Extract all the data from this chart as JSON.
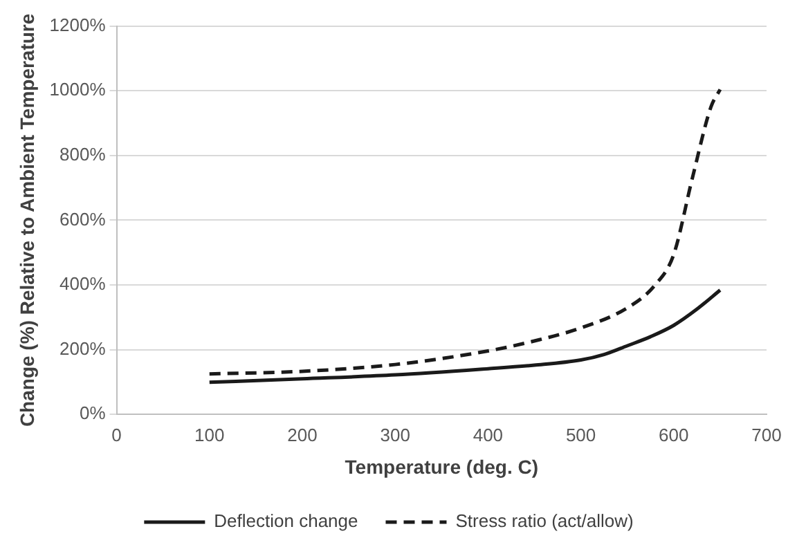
{
  "chart_data": {
    "type": "line",
    "xlabel": "Temperature (deg. C)",
    "ylabel": "Change (%) Relative to Ambient Temperature",
    "xlim": [
      0,
      700
    ],
    "xticks": [
      0,
      100,
      200,
      300,
      400,
      500,
      600,
      700
    ],
    "ylim": [
      0,
      1200
    ],
    "yticks": [
      {
        "value": 0,
        "label": "0%"
      },
      {
        "value": 200,
        "label": "200%"
      },
      {
        "value": 400,
        "label": "400%"
      },
      {
        "value": 600,
        "label": "600%"
      },
      {
        "value": 800,
        "label": "800%"
      },
      {
        "value": 1000,
        "label": "1000%"
      },
      {
        "value": 1200,
        "label": "1200%"
      }
    ],
    "grid": "y",
    "legend": "bottom",
    "marker": "none",
    "series": [
      {
        "name": "Deflection change",
        "color": "#1a1a1a",
        "line_style": "solid",
        "x": [
          100,
          200,
          300,
          400,
          450,
          500,
          525,
          550,
          575,
          600,
          625,
          650
        ],
        "values": [
          99,
          110,
          122,
          141,
          152,
          168,
          185,
          212,
          240,
          275,
          325,
          384
        ]
      },
      {
        "name": "Stress ratio (act/allow)",
        "color": "#1a1a1a",
        "line_style": "dashed",
        "x": [
          100,
          200,
          300,
          400,
          450,
          500,
          550,
          580,
          600,
          620,
          640,
          650
        ],
        "values": [
          125,
          133,
          154,
          196,
          227,
          267,
          329,
          400,
          494,
          729,
          949,
          1004
        ]
      }
    ]
  }
}
